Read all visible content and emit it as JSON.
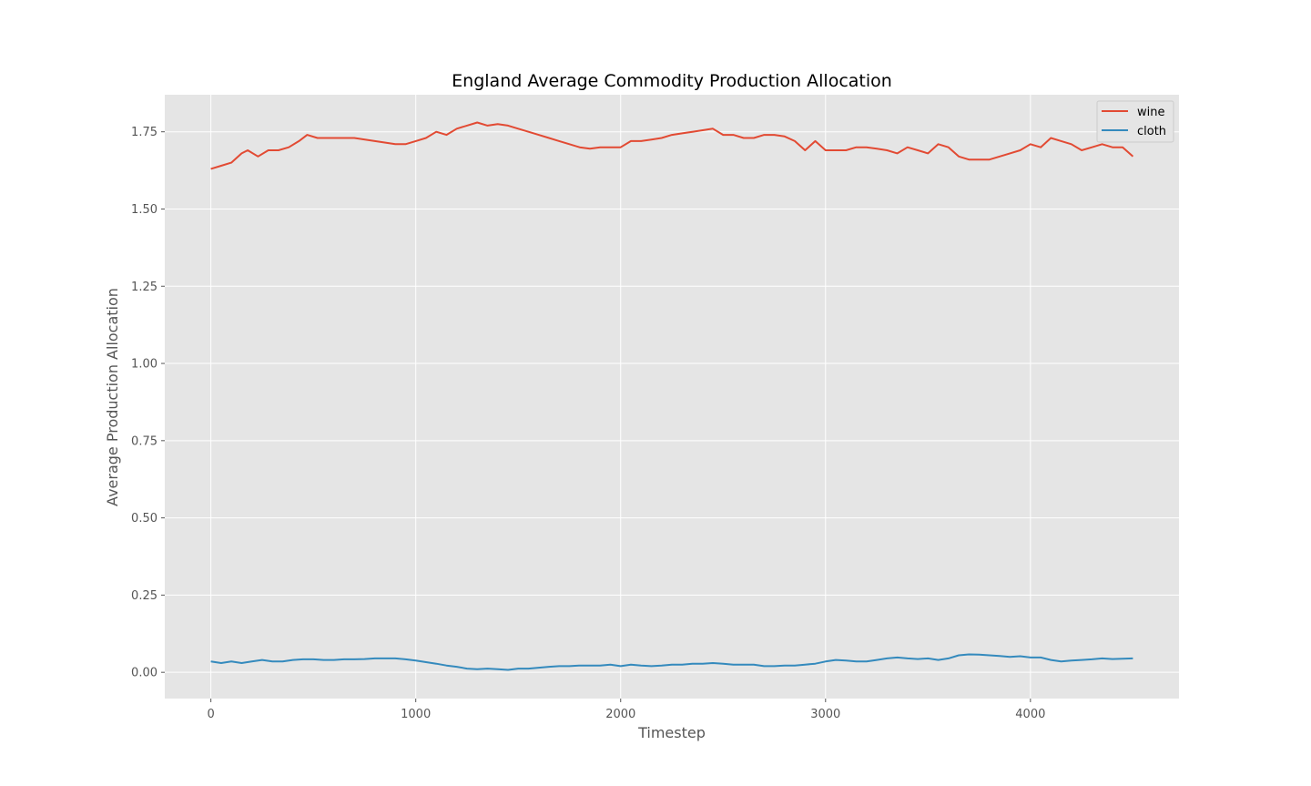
{
  "chart_data": {
    "type": "line",
    "title": "England Average Commodity Production Allocation",
    "xlabel": "Timestep",
    "ylabel": "Average Production Allocation",
    "xlim": [
      -225,
      4725
    ],
    "ylim": [
      -0.085,
      1.87
    ],
    "xticks": [
      0,
      1000,
      2000,
      3000,
      4000
    ],
    "yticks": [
      0.0,
      0.25,
      0.5,
      0.75,
      1.0,
      1.25,
      1.5,
      1.75
    ],
    "xtick_labels": [
      "0",
      "1000",
      "2000",
      "3000",
      "4000"
    ],
    "ytick_labels": [
      "0.00",
      "0.25",
      "0.50",
      "0.75",
      "1.00",
      "1.25",
      "1.50",
      "1.75"
    ],
    "grid": true,
    "legend": "top-right",
    "background": "#e5e5e5",
    "series": [
      {
        "name": "wine",
        "color": "#e24a33",
        "x": [
          0,
          50,
          100,
          150,
          180,
          230,
          280,
          330,
          380,
          430,
          470,
          520,
          600,
          700,
          800,
          900,
          950,
          1000,
          1050,
          1100,
          1150,
          1200,
          1250,
          1300,
          1350,
          1400,
          1450,
          1500,
          1550,
          1600,
          1650,
          1700,
          1750,
          1800,
          1850,
          1900,
          1950,
          2000,
          2050,
          2100,
          2150,
          2200,
          2250,
          2300,
          2350,
          2400,
          2450,
          2500,
          2550,
          2600,
          2650,
          2700,
          2750,
          2800,
          2850,
          2900,
          2950,
          3000,
          3050,
          3100,
          3150,
          3200,
          3250,
          3300,
          3350,
          3400,
          3450,
          3500,
          3550,
          3600,
          3650,
          3700,
          3750,
          3800,
          3850,
          3900,
          3950,
          4000,
          4050,
          4100,
          4150,
          4200,
          4250,
          4300,
          4350,
          4400,
          4450,
          4500
        ],
        "y": [
          1.63,
          1.64,
          1.65,
          1.68,
          1.69,
          1.67,
          1.69,
          1.69,
          1.7,
          1.72,
          1.74,
          1.73,
          1.73,
          1.73,
          1.72,
          1.71,
          1.71,
          1.72,
          1.73,
          1.75,
          1.74,
          1.76,
          1.77,
          1.78,
          1.77,
          1.775,
          1.77,
          1.76,
          1.75,
          1.74,
          1.73,
          1.72,
          1.71,
          1.7,
          1.695,
          1.7,
          1.7,
          1.7,
          1.72,
          1.72,
          1.725,
          1.73,
          1.74,
          1.745,
          1.75,
          1.755,
          1.76,
          1.74,
          1.74,
          1.73,
          1.73,
          1.74,
          1.74,
          1.735,
          1.72,
          1.69,
          1.72,
          1.69,
          1.69,
          1.69,
          1.7,
          1.7,
          1.695,
          1.69,
          1.68,
          1.7,
          1.69,
          1.68,
          1.71,
          1.7,
          1.67,
          1.66,
          1.66,
          1.66,
          1.67,
          1.68,
          1.69,
          1.71,
          1.7,
          1.73,
          1.72,
          1.71,
          1.69,
          1.7,
          1.71,
          1.7,
          1.7,
          1.67
        ]
      },
      {
        "name": "cloth",
        "color": "#348abd",
        "x": [
          0,
          50,
          100,
          150,
          200,
          250,
          300,
          350,
          400,
          450,
          500,
          550,
          600,
          650,
          700,
          750,
          800,
          850,
          900,
          950,
          1000,
          1050,
          1100,
          1150,
          1200,
          1250,
          1300,
          1350,
          1400,
          1450,
          1500,
          1550,
          1600,
          1650,
          1700,
          1750,
          1800,
          1850,
          1900,
          1950,
          2000,
          2050,
          2100,
          2150,
          2200,
          2250,
          2300,
          2350,
          2400,
          2450,
          2500,
          2550,
          2600,
          2650,
          2700,
          2750,
          2800,
          2850,
          2900,
          2950,
          3000,
          3050,
          3100,
          3150,
          3200,
          3250,
          3300,
          3350,
          3400,
          3450,
          3500,
          3550,
          3600,
          3650,
          3700,
          3750,
          3800,
          3850,
          3900,
          3950,
          4000,
          4050,
          4100,
          4150,
          4200,
          4250,
          4300,
          4350,
          4400,
          4450,
          4500
        ],
        "y": [
          0.035,
          0.03,
          0.035,
          0.03,
          0.035,
          0.04,
          0.035,
          0.035,
          0.04,
          0.042,
          0.042,
          0.04,
          0.04,
          0.042,
          0.042,
          0.043,
          0.045,
          0.045,
          0.045,
          0.042,
          0.038,
          0.033,
          0.028,
          0.022,
          0.018,
          0.012,
          0.01,
          0.012,
          0.01,
          0.008,
          0.012,
          0.012,
          0.015,
          0.018,
          0.02,
          0.02,
          0.022,
          0.022,
          0.022,
          0.025,
          0.02,
          0.025,
          0.022,
          0.02,
          0.022,
          0.025,
          0.025,
          0.028,
          0.028,
          0.03,
          0.028,
          0.025,
          0.025,
          0.025,
          0.02,
          0.02,
          0.022,
          0.022,
          0.025,
          0.028,
          0.035,
          0.04,
          0.038,
          0.035,
          0.035,
          0.04,
          0.045,
          0.048,
          0.045,
          0.043,
          0.045,
          0.04,
          0.045,
          0.055,
          0.058,
          0.057,
          0.055,
          0.053,
          0.05,
          0.052,
          0.048,
          0.048,
          0.04,
          0.035,
          0.038,
          0.04,
          0.042,
          0.045,
          0.043,
          0.044,
          0.045
        ]
      }
    ]
  }
}
